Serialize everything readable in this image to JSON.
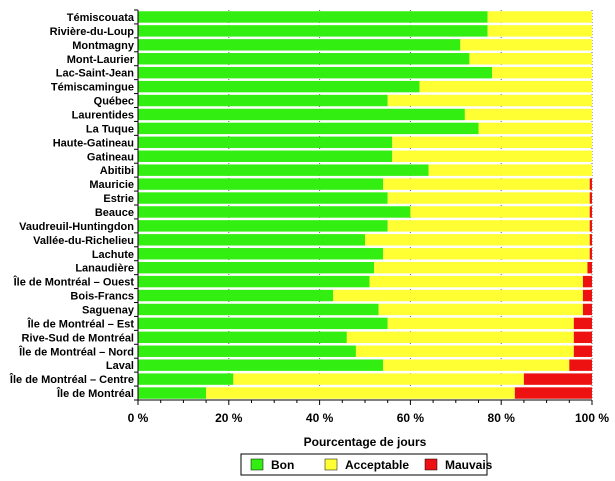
{
  "chart_data": {
    "type": "bar",
    "orientation": "horizontal",
    "stacked": true,
    "categories": [
      "Témiscouata",
      "Rivière-du-Loup",
      "Montmagny",
      "Mont-Laurier",
      "Lac-Saint-Jean",
      "Témiscamingue",
      "Québec",
      "Laurentides",
      "La Tuque",
      "Haute-Gatineau",
      "Gatineau",
      "Abitibi",
      "Mauricie",
      "Estrie",
      "Beauce",
      "Vaudreuil-Huntingdon",
      "Vallée-du-Richelieu",
      "Lachute",
      "Lanaudière",
      "Île de Montréal – Ouest",
      "Bois-Francs",
      "Saguenay",
      "Île de Montréal – Est",
      "Rive-Sud de Montréal",
      "Île de Montréal – Nord",
      "Laval",
      "Île de Montréal – Centre",
      "Île de Montréal"
    ],
    "series": [
      {
        "name": "Bon",
        "color": "#33ee11",
        "values": [
          77,
          77,
          71,
          73,
          78,
          62,
          55,
          72,
          75,
          56,
          56,
          64,
          54,
          55,
          60,
          55,
          50,
          54,
          52,
          51,
          43,
          53,
          55,
          46,
          48,
          54,
          21,
          15
        ]
      },
      {
        "name": "Acceptable",
        "color": "#ffff33",
        "values": [
          23,
          23,
          29,
          27,
          22,
          38,
          45,
          28,
          25,
          44,
          44,
          36,
          45.5,
          44.5,
          39.5,
          44.5,
          49.5,
          45.5,
          47,
          47,
          55,
          45,
          41,
          50,
          48,
          41,
          64,
          68
        ]
      },
      {
        "name": "Mauvais",
        "color": "#ee1111",
        "values": [
          0,
          0,
          0,
          0,
          0,
          0,
          0,
          0,
          0,
          0,
          0,
          0,
          0.5,
          0.5,
          0.5,
          0.5,
          0.5,
          0.5,
          1,
          2,
          2,
          2,
          4,
          4,
          4,
          5,
          15,
          17
        ]
      }
    ],
    "xlabel": "Pourcentage de jours",
    "ylabel": "",
    "xlim": [
      0,
      100
    ],
    "ticks": [
      "0 %",
      "20 %",
      "40 %",
      "60 %",
      "80 %",
      "100 %"
    ],
    "grid": true,
    "legend_position": "bottom"
  }
}
